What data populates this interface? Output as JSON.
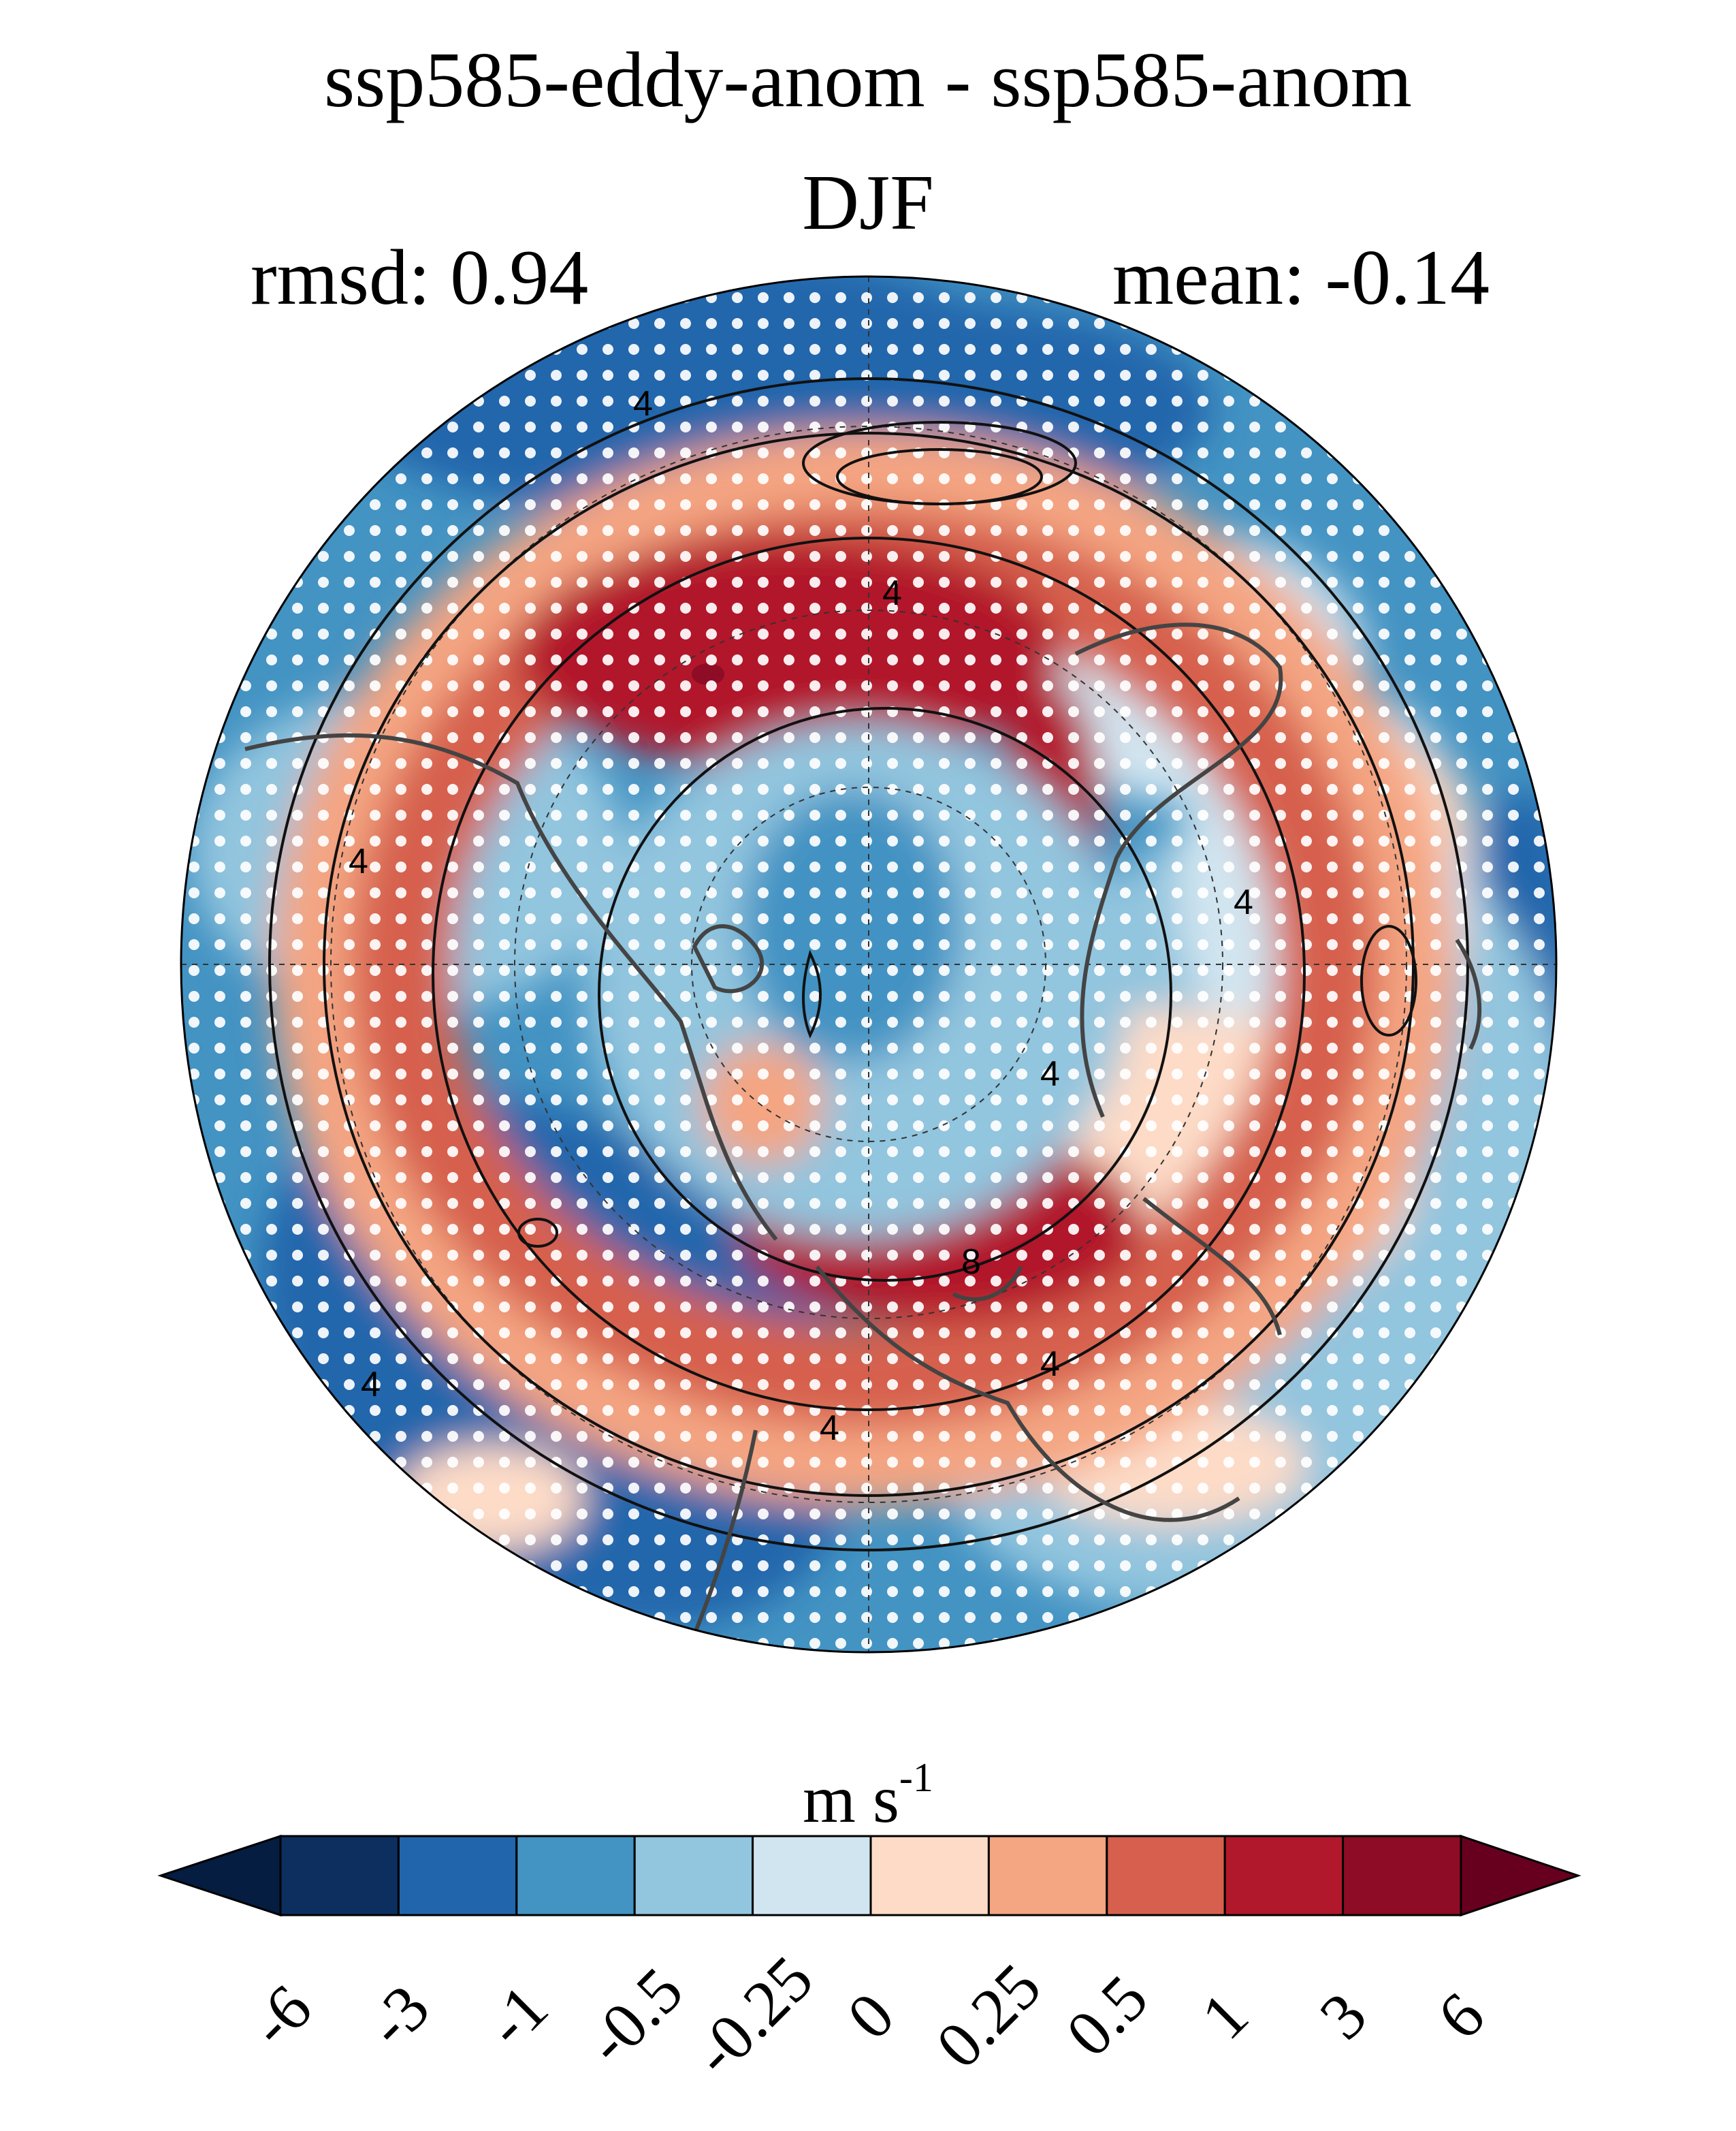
{
  "title": {
    "line1": "ssp585-eddy-anom - ssp585-anom",
    "line2": "DJF",
    "rmsd": "rmsd: 0.94",
    "mean": "mean: -0.14"
  },
  "map": {
    "projection": "north polar stereographic",
    "field": "wind speed anomaly difference",
    "contour_labels": [
      "4",
      "4",
      "4",
      "4",
      "4",
      "4",
      "4",
      "8",
      "4"
    ],
    "stippling": "white dots",
    "coastlines": true,
    "graticule": "dashed"
  },
  "colorbar": {
    "units_base": "m s",
    "units_exp": "-1",
    "tick_labels": [
      "-6",
      "-3",
      "-1",
      "-0.5",
      "-0.25",
      "0",
      "0.25",
      "0.5",
      "1",
      "3",
      "6"
    ],
    "colors": [
      "#041d40",
      "#0c2f60",
      "#2166ac",
      "#4393c3",
      "#92c5de",
      "#d1e5f0",
      "#fddbc7",
      "#f4a582",
      "#d6604d",
      "#b2182b",
      "#8e0c25",
      "#67001f"
    ]
  },
  "chart_data": {
    "type": "heatmap",
    "title": "ssp585-eddy-anom - ssp585-anom",
    "subtitle": "DJF",
    "rmsd": 0.94,
    "mean": -0.14,
    "units": "m s-1",
    "levels": [
      -6,
      -3,
      -1,
      -0.5,
      -0.25,
      0,
      0.25,
      0.5,
      1,
      3,
      6
    ]
  }
}
